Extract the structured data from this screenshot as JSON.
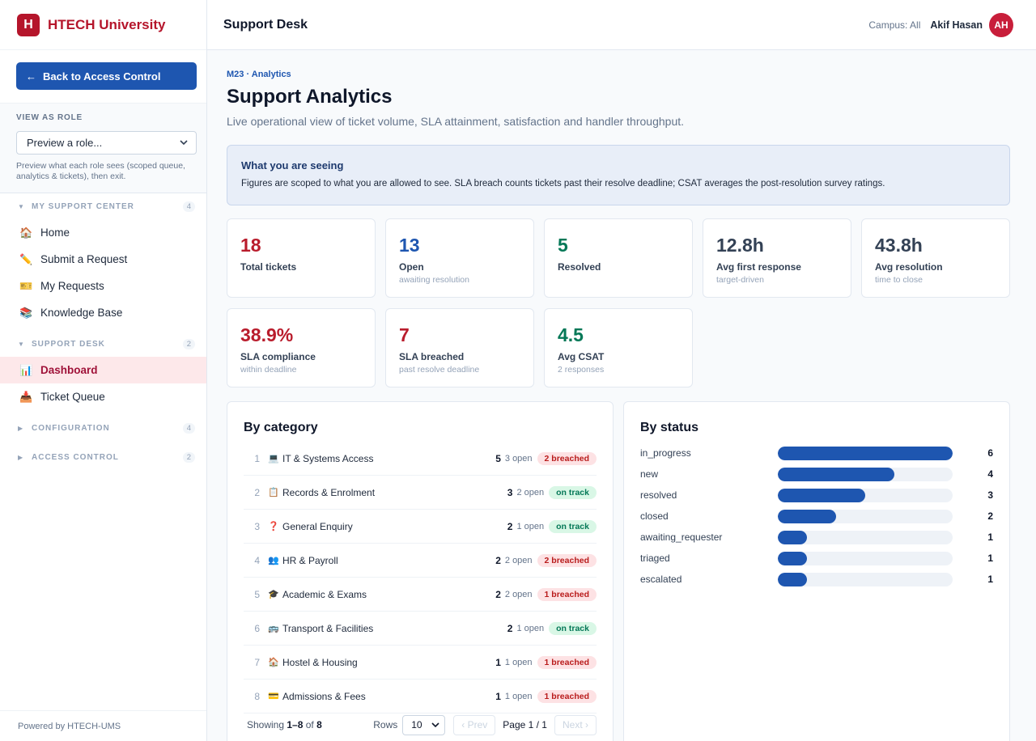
{
  "brand": {
    "logo_letter": "H",
    "name": "HTECH University",
    "accent": "#b5152b"
  },
  "sidebar": {
    "back_label": "Back to Access Control",
    "role_title": "VIEW AS ROLE",
    "role_select": "Preview a role...",
    "role_hint": "Preview what each role sees (scoped queue, analytics & tickets), then exit.",
    "sections": [
      {
        "label": "MY SUPPORT CENTER",
        "count": "4",
        "caret": "▼"
      },
      {
        "label": "SUPPORT DESK",
        "count": "2",
        "caret": "▼"
      },
      {
        "label": "CONFIGURATION",
        "count": "4",
        "caret": "▶"
      },
      {
        "label": "ACCESS CONTROL",
        "count": "2",
        "caret": "▶"
      }
    ],
    "items": [
      {
        "label": "Home",
        "icon": "🏠"
      },
      {
        "label": "Submit a Request",
        "icon": "✏️"
      },
      {
        "label": "My Requests",
        "icon": "🎫"
      },
      {
        "label": "Knowledge Base",
        "icon": "📚"
      },
      {
        "label": "Dashboard",
        "icon": "📊"
      },
      {
        "label": "Ticket Queue",
        "icon": "📥"
      }
    ],
    "footer": "Powered by HTECH-UMS"
  },
  "topbar": {
    "title": "Support Desk",
    "campus": "Campus: All",
    "user": "Akif Hasan",
    "initials": "AH"
  },
  "page": {
    "crumb": "M23 · Analytics",
    "title": "Support Analytics",
    "subtitle": "Live operational view of ticket volume, SLA attainment, satisfaction and handler throughput."
  },
  "info": {
    "title": "What you are seeing",
    "text": "Figures are scoped to what you are allowed to see. SLA breach counts tickets past their resolve deadline; CSAT averages the post-resolution survey ratings."
  },
  "kpis": [
    {
      "value": "18",
      "label": "Total tickets",
      "sub": "",
      "color": "#b91c2c"
    },
    {
      "value": "13",
      "label": "Open",
      "sub": "awaiting resolution",
      "color": "#1e56b0"
    },
    {
      "value": "5",
      "label": "Resolved",
      "sub": "",
      "color": "#047857"
    },
    {
      "value": "12.8h",
      "label": "Avg first response",
      "sub": "target-driven",
      "color": "#334155"
    },
    {
      "value": "43.8h",
      "label": "Avg resolution",
      "sub": "time to close",
      "color": "#334155"
    },
    {
      "value": "38.9%",
      "label": "SLA compliance",
      "sub": "within deadline",
      "color": "#b91c2c"
    },
    {
      "value": "7",
      "label": "SLA breached",
      "sub": "past resolve deadline",
      "color": "#b91c2c"
    },
    {
      "value": "4.5",
      "label": "Avg CSAT",
      "sub": "2 responses",
      "color": "#047857"
    }
  ],
  "category": {
    "title": "By category",
    "rows": [
      {
        "num": "1",
        "icon": "💻",
        "name": "IT & Systems Access",
        "count": "5",
        "open": "3 open",
        "badge": "2 breached",
        "status": "breached"
      },
      {
        "num": "2",
        "icon": "📋",
        "name": "Records & Enrolment",
        "count": "3",
        "open": "2 open",
        "badge": "on track",
        "status": "ontrack"
      },
      {
        "num": "3",
        "icon": "❓",
        "name": "General Enquiry",
        "count": "2",
        "open": "1 open",
        "badge": "on track",
        "status": "ontrack"
      },
      {
        "num": "4",
        "icon": "👥",
        "name": "HR & Payroll",
        "count": "2",
        "open": "2 open",
        "badge": "2 breached",
        "status": "breached"
      },
      {
        "num": "5",
        "icon": "🎓",
        "name": "Academic & Exams",
        "count": "2",
        "open": "2 open",
        "badge": "1 breached",
        "status": "breached"
      },
      {
        "num": "6",
        "icon": "🚌",
        "name": "Transport & Facilities",
        "count": "2",
        "open": "1 open",
        "badge": "on track",
        "status": "ontrack"
      },
      {
        "num": "7",
        "icon": "🏠",
        "name": "Hostel & Housing",
        "count": "1",
        "open": "1 open",
        "badge": "1 breached",
        "status": "breached"
      },
      {
        "num": "8",
        "icon": "💳",
        "name": "Admissions & Fees",
        "count": "1",
        "open": "1 open",
        "badge": "1 breached",
        "status": "breached"
      }
    ],
    "pager": {
      "showing_prefix": "Showing ",
      "range": "1–8",
      "of": " of ",
      "total": "8",
      "rows_label": "Rows",
      "rows_value": "10",
      "prev": "‹ Prev",
      "page": "Page 1 / 1",
      "next": "Next ›"
    }
  },
  "status": {
    "title": "By status",
    "max": 6,
    "rows": [
      {
        "name": "in_progress",
        "value": 6
      },
      {
        "name": "new",
        "value": 4
      },
      {
        "name": "resolved",
        "value": 3
      },
      {
        "name": "closed",
        "value": 2
      },
      {
        "name": "awaiting_requester",
        "value": 1
      },
      {
        "name": "triaged",
        "value": 1
      },
      {
        "name": "escalated",
        "value": 1
      }
    ]
  }
}
